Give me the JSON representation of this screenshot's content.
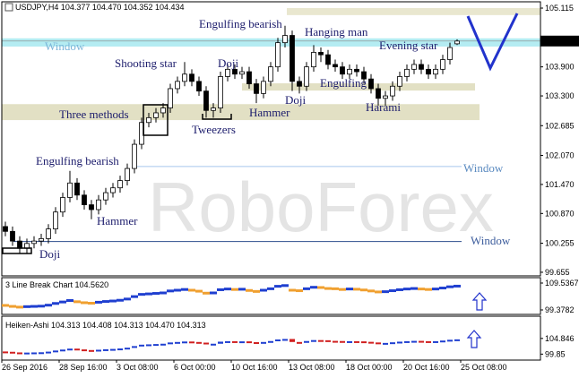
{
  "chart_data": {
    "type": "candlestick",
    "header": "USDJPY,H4 104.377 104.470 104.352 104.434",
    "watermark": "RoboForex",
    "ylim": [
      99.58,
      105.245
    ],
    "yticks": [
      105.115,
      {
        "value": 103.9,
        "label": "103.900"
      },
      {
        "value": 103.3,
        "label": "103.300"
      },
      102.685,
      {
        "value": 102.07,
        "label": "102.070"
      },
      {
        "value": 101.47,
        "label": "101.470"
      },
      {
        "value": 100.87,
        "label": "100.870"
      },
      100.255,
      99.655
    ],
    "current_price": 104.434,
    "xticks": [
      {
        "value": 0,
        "label": "26 Sep 2016"
      },
      {
        "value": 8,
        "label": "28 Sep 16:00"
      },
      {
        "value": 16,
        "label": "3 Oct 08:00"
      },
      {
        "value": 24,
        "label": "6 Oct 00:00"
      },
      {
        "value": 32,
        "label": "10 Oct 16:00"
      },
      {
        "value": 40,
        "label": "13 Oct 08:00"
      },
      {
        "value": 48,
        "label": "18 Oct 00:00"
      },
      {
        "value": 56,
        "label": "20 Oct 16:00"
      },
      {
        "value": 64,
        "label": "25 Oct 08:00"
      }
    ],
    "up_color": "#ffffff",
    "down_color": "#000000",
    "open": [
      100.6,
      100.5,
      100.3,
      100.15,
      100.25,
      100.3,
      100.35,
      100.55,
      100.9,
      101.2,
      101.5,
      101.25,
      101.05,
      100.95,
      101.15,
      101.3,
      101.4,
      101.55,
      101.8,
      102.3,
      102.75,
      102.85,
      102.95,
      103.05,
      103.45,
      103.6,
      103.75,
      103.6,
      103.4,
      103.0,
      103.05,
      103.7,
      103.85,
      103.75,
      103.8,
      103.55,
      103.35,
      103.6,
      103.9,
      104.4,
      104.55,
      103.6,
      103.5,
      103.9,
      104.2,
      104.15,
      103.95,
      103.9,
      103.75,
      103.85,
      103.8,
      103.65,
      103.45,
      103.25,
      103.3,
      103.5,
      103.7,
      103.85,
      103.95,
      103.85,
      103.75,
      103.85,
      104.05,
      104.377
    ],
    "high": [
      100.7,
      100.6,
      100.4,
      100.35,
      100.4,
      100.45,
      100.65,
      101.0,
      101.3,
      101.75,
      101.6,
      101.35,
      101.15,
      101.25,
      101.4,
      101.5,
      101.65,
      101.9,
      102.4,
      102.85,
      102.95,
      103.05,
      103.15,
      103.55,
      103.7,
      104.0,
      103.85,
      103.7,
      103.5,
      103.15,
      103.8,
      103.95,
      103.95,
      103.9,
      103.9,
      103.65,
      103.7,
      104.0,
      104.5,
      104.75,
      104.65,
      103.7,
      104.0,
      104.35,
      104.3,
      104.25,
      104.05,
      104.0,
      103.95,
      103.95,
      103.9,
      103.75,
      103.55,
      103.4,
      103.6,
      103.8,
      103.95,
      104.05,
      104.05,
      103.95,
      103.95,
      104.15,
      104.4,
      104.47
    ],
    "low": [
      100.4,
      100.2,
      100.05,
      100.05,
      100.15,
      100.2,
      100.25,
      100.45,
      100.8,
      101.1,
      101.15,
      100.95,
      100.75,
      100.85,
      101.05,
      101.2,
      101.3,
      101.45,
      101.7,
      102.2,
      102.65,
      102.75,
      102.85,
      102.95,
      103.35,
      103.5,
      103.5,
      103.3,
      102.85,
      102.85,
      102.95,
      103.6,
      103.65,
      103.65,
      103.45,
      103.15,
      103.25,
      103.5,
      103.8,
      104.3,
      103.4,
      103.35,
      103.4,
      103.8,
      104.0,
      103.85,
      103.8,
      103.65,
      103.65,
      103.7,
      103.55,
      103.35,
      103.1,
      103.1,
      103.2,
      103.4,
      103.6,
      103.75,
      103.75,
      103.65,
      103.65,
      103.75,
      103.95,
      104.352
    ],
    "close": [
      100.5,
      100.3,
      100.15,
      100.25,
      100.3,
      100.35,
      100.55,
      100.9,
      101.2,
      101.5,
      101.25,
      101.05,
      100.95,
      101.15,
      101.3,
      101.4,
      101.55,
      101.8,
      102.3,
      102.75,
      102.85,
      102.95,
      103.05,
      103.45,
      103.6,
      103.75,
      103.6,
      103.4,
      103.0,
      103.05,
      103.7,
      103.85,
      103.75,
      103.8,
      103.55,
      103.35,
      103.6,
      103.9,
      104.4,
      104.55,
      103.6,
      103.5,
      103.9,
      104.2,
      104.15,
      103.95,
      103.9,
      103.75,
      103.85,
      103.8,
      103.65,
      103.45,
      103.25,
      103.3,
      103.5,
      103.7,
      103.85,
      103.95,
      103.85,
      103.75,
      103.85,
      104.05,
      104.3,
      104.434
    ],
    "zones": [
      {
        "from": 105.115,
        "to": 104.97,
        "color": "#e9e7cf"
      },
      {
        "from": 104.49,
        "to": 104.32,
        "color": "#b4ecf2"
      },
      {
        "from": 103.56,
        "to": 103.41,
        "color": "#e2e0c4"
      },
      {
        "from": 103.13,
        "to": 102.8,
        "color": "#e2e0c4"
      }
    ],
    "levels": [
      {
        "value": 101.84,
        "color": "#a8c8ec"
      },
      {
        "value": 100.29,
        "color": "#2c4c8c"
      }
    ],
    "annotations": [
      "Window",
      "Engulfing bearish",
      "Hanging man",
      "Evening star",
      "Shooting star",
      "Doji",
      "Engulfing",
      "Three methods",
      "Hammer",
      "Doji",
      "Harami",
      "Tweezers",
      "Engulfing bearish",
      "Window",
      "Hammer",
      "Window",
      "Doji"
    ],
    "line_break": {
      "label": "3 Line Break Chart 104.5620",
      "ylim": [
        98.024,
        111.23
      ],
      "yticks": [
        109.5367,
        99.3782
      ],
      "up_color": "#1f3fd0",
      "down_color": "#f0a030"
    },
    "heiken_ashi": {
      "label": "Heiken-Ashi 104.313 104.408 104.313 104.470 104.313",
      "ylim": [
        98.52,
        106.51
      ],
      "yticks": [
        104.846,
        99.85
      ],
      "up_color": "#1f3fd0",
      "down_color": "#d02020"
    }
  }
}
